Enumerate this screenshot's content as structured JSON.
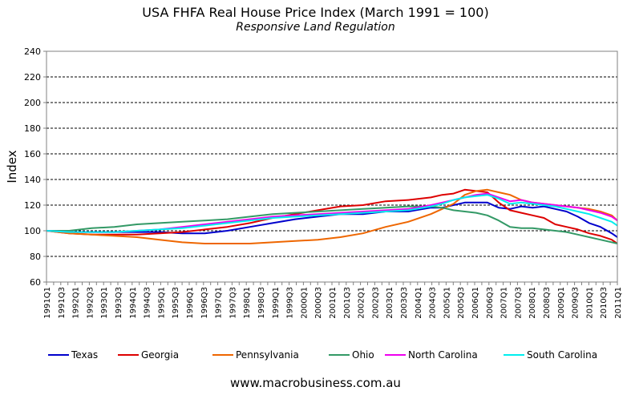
{
  "header": {
    "title": "USA FHFA Real House Price Index (March 1991 = 100)",
    "subtitle": "Responsive Land Regulation"
  },
  "footer": {
    "source": "www.macrobusiness.com.au"
  },
  "chart_data": {
    "type": "line",
    "title": "USA FHFA Real House Price Index (March 1991 = 100)",
    "subtitle": "Responsive Land Regulation",
    "xlabel": "",
    "ylabel": "Index",
    "ylim": [
      60,
      240
    ],
    "yticks": [
      60,
      80,
      100,
      120,
      140,
      160,
      180,
      200,
      220,
      240
    ],
    "grid": "horizontal-dashed",
    "legend_position": "bottom",
    "x_start": "1991Q1",
    "x_count": 81,
    "x_labels": [
      "1991Q1",
      "1991Q3",
      "1992Q1",
      "1992Q3",
      "1993Q1",
      "1993Q3",
      "1994Q1",
      "1994Q3",
      "1995Q1",
      "1995Q3",
      "1996Q1",
      "1996Q3",
      "1997Q1",
      "1997Q3",
      "1998Q1",
      "1998Q3",
      "1999Q1",
      "1999Q3",
      "2000Q1",
      "2000Q3",
      "2001Q1",
      "2001Q3",
      "2002Q1",
      "2002Q3",
      "2003Q1",
      "2003Q3",
      "2004Q1",
      "2004Q3",
      "2005Q1",
      "2005Q3",
      "2006Q1",
      "2006Q3",
      "2007Q1",
      "2007Q3",
      "2008Q1",
      "2008Q3",
      "2009Q1",
      "2009Q3",
      "2010Q1",
      "2010Q3",
      "2011Q1"
    ],
    "series": [
      {
        "name": "Texas",
        "color": "#0000cc",
        "points": [
          [
            0,
            100
          ],
          [
            4,
            99
          ],
          [
            8,
            99
          ],
          [
            12,
            99
          ],
          [
            16,
            99
          ],
          [
            20,
            99
          ],
          [
            24,
            98
          ],
          [
            28,
            98
          ],
          [
            32,
            100
          ],
          [
            36,
            103
          ],
          [
            40,
            106
          ],
          [
            44,
            109
          ],
          [
            48,
            111
          ],
          [
            52,
            113
          ],
          [
            56,
            113
          ],
          [
            60,
            115
          ],
          [
            64,
            115
          ],
          [
            68,
            118
          ],
          [
            70,
            118
          ],
          [
            72,
            120
          ],
          [
            74,
            122
          ],
          [
            76,
            122
          ],
          [
            78,
            122
          ],
          [
            80,
            118
          ],
          [
            82,
            117
          ],
          [
            84,
            119
          ],
          [
            86,
            118
          ],
          [
            88,
            119
          ],
          [
            90,
            117
          ],
          [
            92,
            115
          ],
          [
            94,
            111
          ],
          [
            96,
            106
          ],
          [
            98,
            103
          ],
          [
            100,
            98
          ],
          [
            101,
            95
          ]
        ]
      },
      {
        "name": "Georgia",
        "color": "#dd0000",
        "points": [
          [
            0,
            100
          ],
          [
            4,
            98
          ],
          [
            8,
            97
          ],
          [
            12,
            97
          ],
          [
            16,
            97
          ],
          [
            20,
            98
          ],
          [
            24,
            99
          ],
          [
            28,
            101
          ],
          [
            32,
            103
          ],
          [
            36,
            106
          ],
          [
            40,
            110
          ],
          [
            44,
            113
          ],
          [
            48,
            116
          ],
          [
            52,
            119
          ],
          [
            56,
            120
          ],
          [
            60,
            123
          ],
          [
            64,
            124
          ],
          [
            68,
            126
          ],
          [
            70,
            128
          ],
          [
            72,
            129
          ],
          [
            74,
            132
          ],
          [
            76,
            131
          ],
          [
            78,
            130
          ],
          [
            80,
            122
          ],
          [
            82,
            116
          ],
          [
            84,
            114
          ],
          [
            86,
            112
          ],
          [
            88,
            110
          ],
          [
            90,
            105
          ],
          [
            92,
            103
          ],
          [
            94,
            101
          ],
          [
            96,
            98
          ],
          [
            98,
            96
          ],
          [
            100,
            93
          ],
          [
            101,
            90
          ]
        ]
      },
      {
        "name": "Pennsylvania",
        "color": "#ee6600",
        "points": [
          [
            0,
            100
          ],
          [
            4,
            98
          ],
          [
            8,
            97
          ],
          [
            12,
            96
          ],
          [
            16,
            95
          ],
          [
            20,
            93
          ],
          [
            24,
            91
          ],
          [
            28,
            90
          ],
          [
            32,
            90
          ],
          [
            36,
            90
          ],
          [
            40,
            91
          ],
          [
            44,
            92
          ],
          [
            48,
            93
          ],
          [
            52,
            95
          ],
          [
            56,
            98
          ],
          [
            60,
            103
          ],
          [
            64,
            107
          ],
          [
            68,
            113
          ],
          [
            70,
            117
          ],
          [
            72,
            121
          ],
          [
            74,
            128
          ],
          [
            76,
            131
          ],
          [
            78,
            132
          ],
          [
            80,
            130
          ],
          [
            82,
            128
          ],
          [
            84,
            124
          ],
          [
            86,
            122
          ],
          [
            88,
            121
          ],
          [
            90,
            120
          ],
          [
            92,
            119
          ],
          [
            94,
            118
          ],
          [
            96,
            117
          ],
          [
            98,
            115
          ],
          [
            100,
            112
          ],
          [
            101,
            108
          ]
        ]
      },
      {
        "name": "Ohio",
        "color": "#339966",
        "points": [
          [
            0,
            100
          ],
          [
            4,
            100
          ],
          [
            8,
            102
          ],
          [
            12,
            103
          ],
          [
            16,
            105
          ],
          [
            20,
            106
          ],
          [
            24,
            107
          ],
          [
            28,
            108
          ],
          [
            32,
            109
          ],
          [
            36,
            111
          ],
          [
            40,
            113
          ],
          [
            44,
            114
          ],
          [
            48,
            115
          ],
          [
            52,
            116
          ],
          [
            56,
            117
          ],
          [
            60,
            118
          ],
          [
            64,
            119
          ],
          [
            68,
            119
          ],
          [
            70,
            118
          ],
          [
            72,
            116
          ],
          [
            74,
            115
          ],
          [
            76,
            114
          ],
          [
            78,
            112
          ],
          [
            80,
            108
          ],
          [
            82,
            103
          ],
          [
            84,
            102
          ],
          [
            86,
            102
          ],
          [
            88,
            101
          ],
          [
            90,
            100
          ],
          [
            92,
            99
          ],
          [
            94,
            97
          ],
          [
            96,
            95
          ],
          [
            98,
            93
          ],
          [
            100,
            91
          ],
          [
            101,
            90
          ]
        ]
      },
      {
        "name": "North Carolina",
        "color": "#ee00ee",
        "points": [
          [
            0,
            100
          ],
          [
            4,
            99
          ],
          [
            8,
            99
          ],
          [
            12,
            99
          ],
          [
            16,
            100
          ],
          [
            20,
            101
          ],
          [
            24,
            103
          ],
          [
            28,
            105
          ],
          [
            32,
            107
          ],
          [
            36,
            109
          ],
          [
            40,
            111
          ],
          [
            44,
            112
          ],
          [
            48,
            113
          ],
          [
            52,
            114
          ],
          [
            56,
            115
          ],
          [
            60,
            116
          ],
          [
            64,
            117
          ],
          [
            68,
            120
          ],
          [
            70,
            122
          ],
          [
            72,
            124
          ],
          [
            74,
            126
          ],
          [
            76,
            128
          ],
          [
            78,
            129
          ],
          [
            80,
            126
          ],
          [
            82,
            123
          ],
          [
            84,
            124
          ],
          [
            86,
            122
          ],
          [
            88,
            121
          ],
          [
            90,
            120
          ],
          [
            92,
            119
          ],
          [
            94,
            118
          ],
          [
            96,
            116
          ],
          [
            98,
            114
          ],
          [
            100,
            111
          ],
          [
            101,
            108
          ]
        ]
      },
      {
        "name": "South Carolina",
        "color": "#00eeee",
        "points": [
          [
            0,
            100
          ],
          [
            4,
            99
          ],
          [
            8,
            99
          ],
          [
            12,
            99
          ],
          [
            16,
            100
          ],
          [
            20,
            101
          ],
          [
            24,
            102
          ],
          [
            28,
            104
          ],
          [
            32,
            106
          ],
          [
            36,
            108
          ],
          [
            40,
            110
          ],
          [
            44,
            111
          ],
          [
            48,
            112
          ],
          [
            52,
            113
          ],
          [
            56,
            114
          ],
          [
            60,
            115
          ],
          [
            64,
            116
          ],
          [
            68,
            119
          ],
          [
            70,
            121
          ],
          [
            72,
            124
          ],
          [
            74,
            126
          ],
          [
            76,
            127
          ],
          [
            78,
            128
          ],
          [
            80,
            125
          ],
          [
            82,
            121
          ],
          [
            84,
            122
          ],
          [
            86,
            121
          ],
          [
            88,
            120
          ],
          [
            90,
            119
          ],
          [
            92,
            117
          ],
          [
            94,
            115
          ],
          [
            96,
            113
          ],
          [
            98,
            110
          ],
          [
            100,
            107
          ],
          [
            101,
            104
          ]
        ]
      }
    ]
  }
}
